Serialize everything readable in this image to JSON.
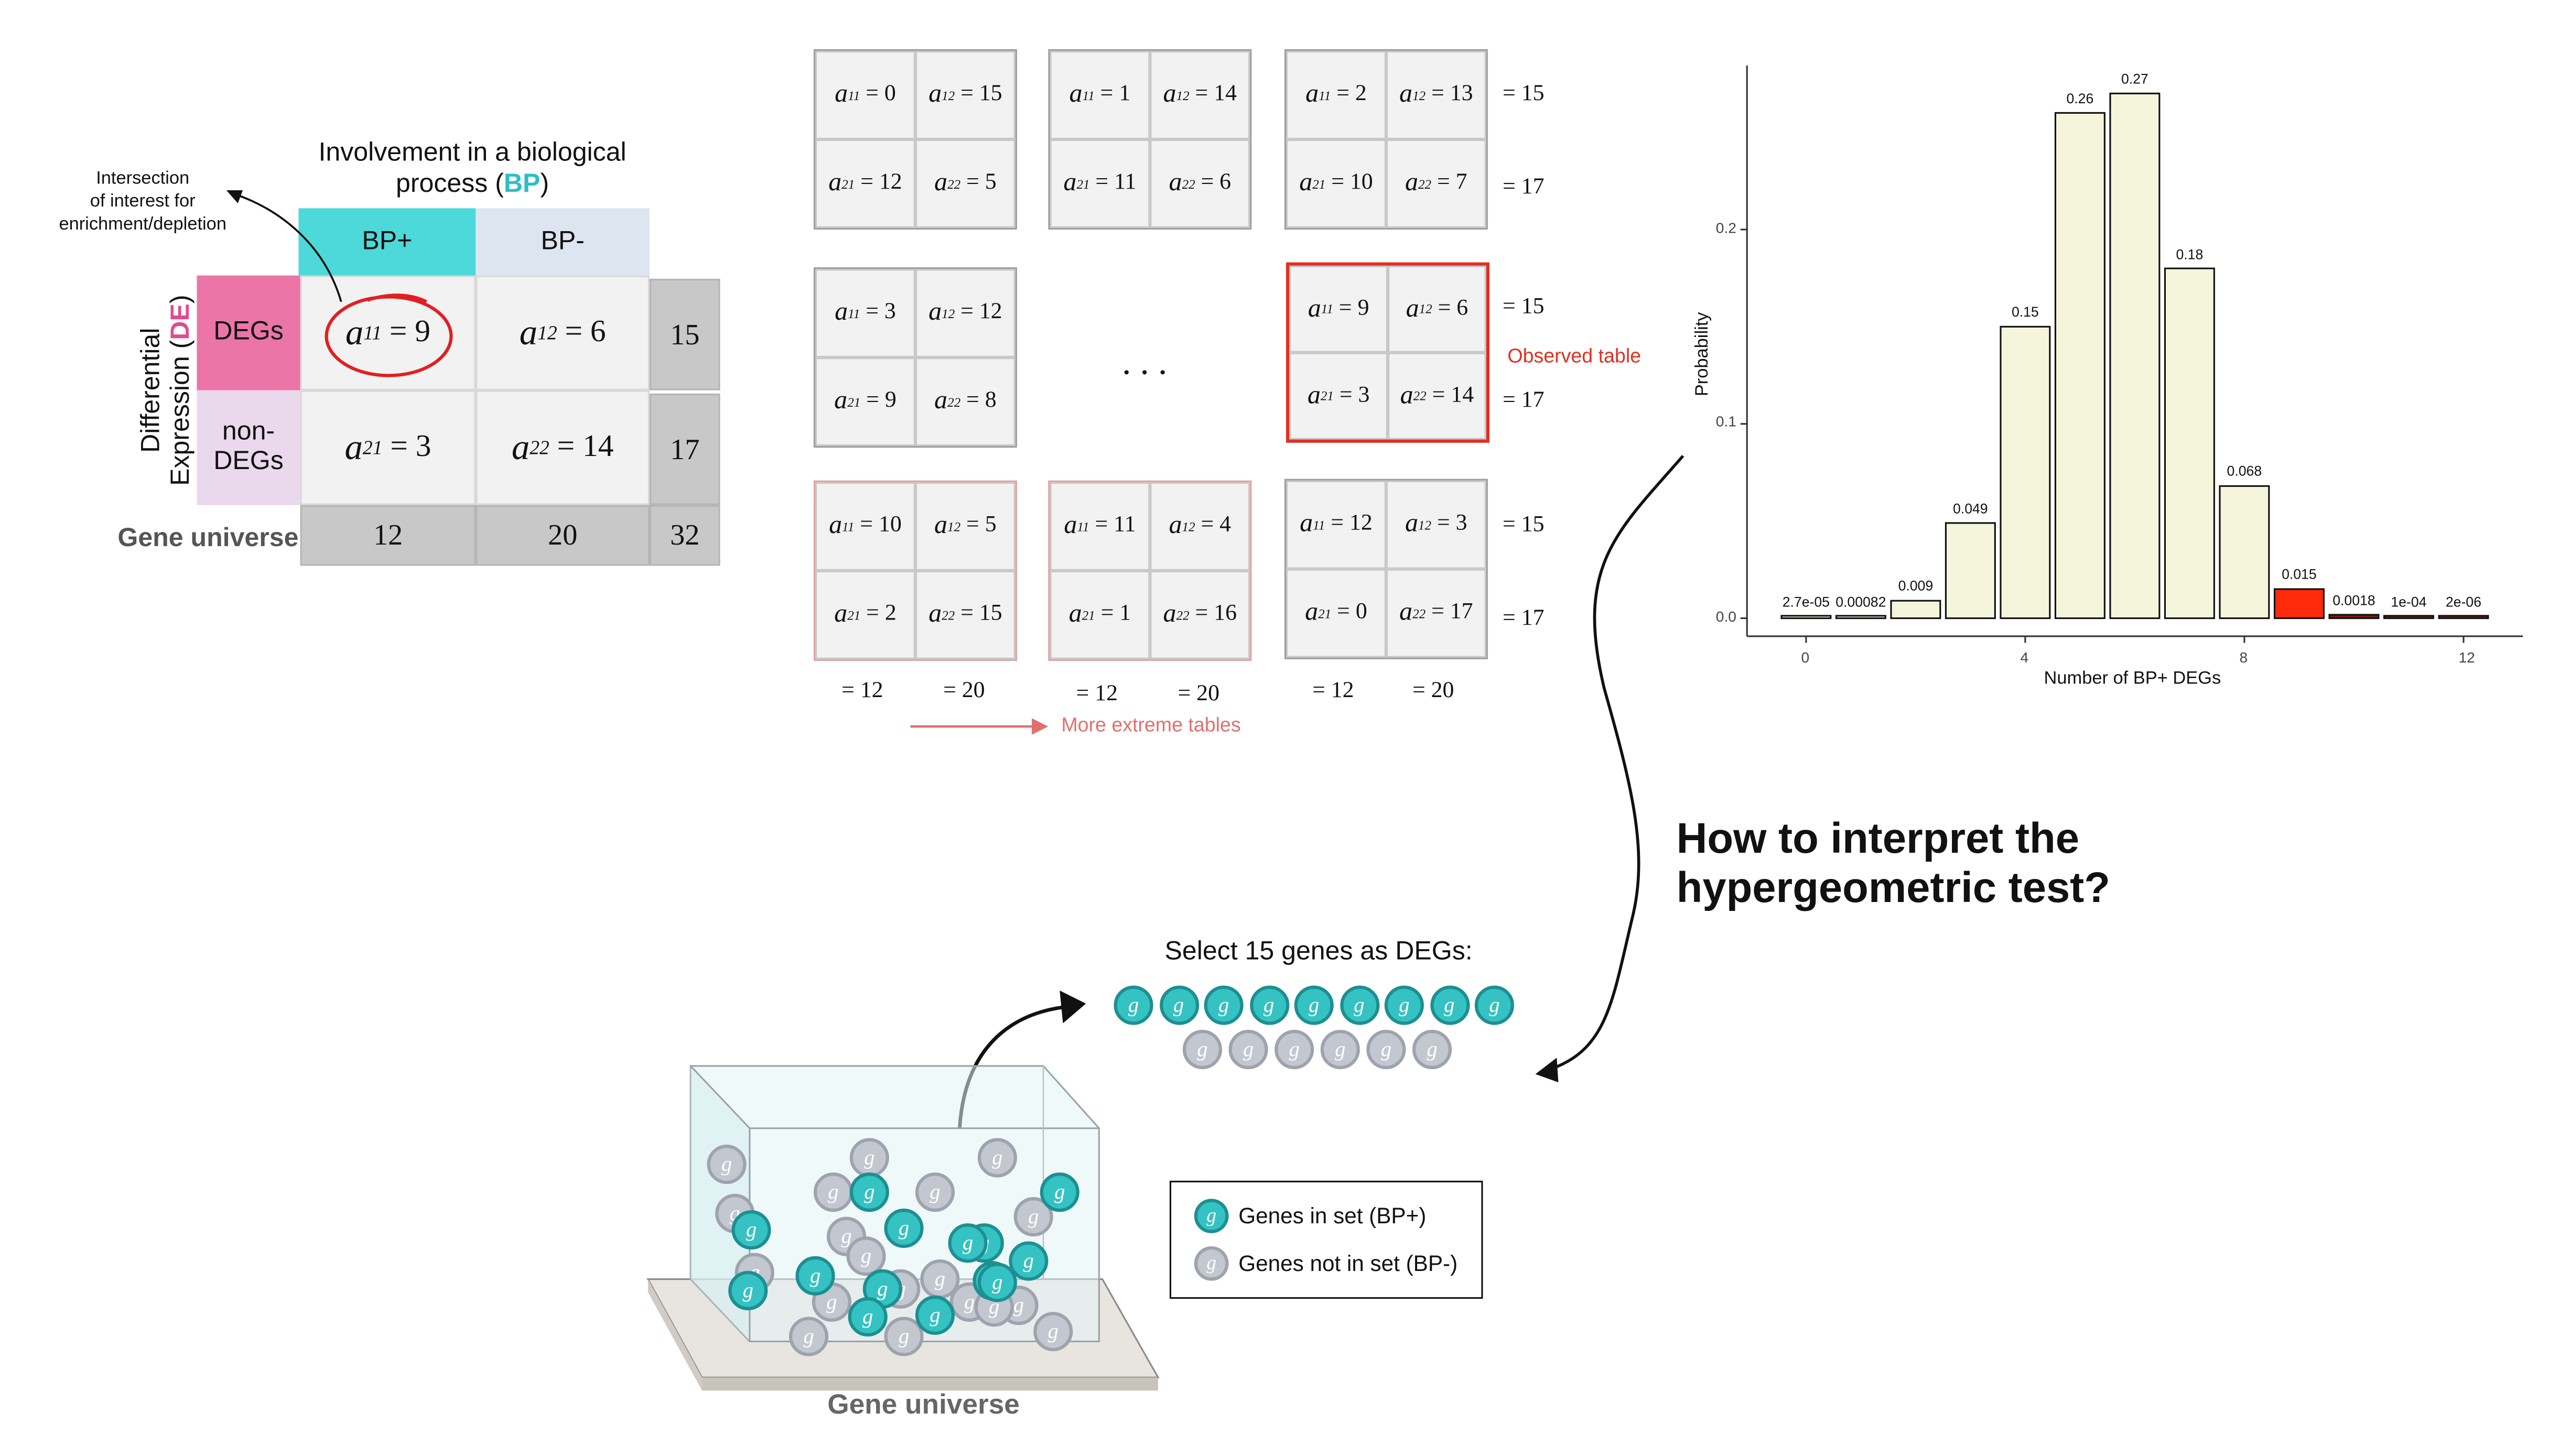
{
  "contingency": {
    "title_line1": "Involvement in a biological",
    "title_line2": "process (",
    "title_bp": "BP",
    "title_close": ")",
    "bp_plus": "BP+",
    "bp_minus": "BP-",
    "row_axis_line1": "Differential",
    "row_axis_line2": "Expression (",
    "row_axis_de": "DE",
    "row_axis_close": ")",
    "degs": "DEGs",
    "non_degs_1": "non-",
    "non_degs_2": "DEGs",
    "gene_universe": "Gene universe",
    "cells": {
      "a11_var": "a",
      "a11_sub": "11",
      "a11_val": "= 9",
      "a12_var": "a",
      "a12_sub": "12",
      "a12_val": "= 6",
      "a21_var": "a",
      "a21_sub": "21",
      "a21_val": "= 3",
      "a22_var": "a",
      "a22_sub": "22",
      "a22_val": "= 14"
    },
    "row_totals": [
      "15",
      "17"
    ],
    "col_totals": [
      "12",
      "20"
    ],
    "grand_total": "32",
    "annotation": [
      "Intersection",
      "of interest for",
      "enrichment/depletion"
    ]
  },
  "mini_tables": [
    {
      "a11": "= 0",
      "a12": "= 15",
      "a21": "= 12",
      "a22": "= 5"
    },
    {
      "a11": "= 1",
      "a12": "= 14",
      "a21": "= 11",
      "a22": "= 6"
    },
    {
      "a11": "= 2",
      "a12": "= 13",
      "a21": "= 10",
      "a22": "= 7"
    },
    {
      "a11": "= 3",
      "a12": "= 12",
      "a21": "= 9",
      "a22": "= 8"
    },
    {
      "a11": "= 9",
      "a12": "= 6",
      "a21": "= 3",
      "a22": "= 14"
    },
    {
      "a11": "= 10",
      "a12": "= 5",
      "a21": "= 2",
      "a22": "= 15"
    },
    {
      "a11": "= 11",
      "a12": "= 4",
      "a21": "= 1",
      "a22": "= 16"
    },
    {
      "a11": "= 12",
      "a12": "= 3",
      "a21": "= 0",
      "a22": "= 17"
    }
  ],
  "mini_labels": {
    "sub11": "11",
    "sub12": "12",
    "sub21": "21",
    "sub22": "22",
    "var": "a",
    "row_sum_1": "= 15",
    "row_sum_2": "= 17",
    "col_sum_1": "= 12",
    "col_sum_2": "= 20",
    "ellipsis": ". . .",
    "observed": "Observed table",
    "more_extreme": "More extreme tables"
  },
  "chart_data": {
    "type": "bar",
    "xlabel": "Number of BP+ DEGs",
    "ylabel": "Probability",
    "x": [
      0,
      1,
      2,
      3,
      4,
      5,
      6,
      7,
      8,
      9,
      10,
      11,
      12
    ],
    "values": [
      2.7e-05,
      0.00082,
      0.009,
      0.049,
      0.15,
      0.26,
      0.27,
      0.18,
      0.068,
      0.015,
      0.0018,
      0.0001,
      2e-06
    ],
    "value_labels": [
      "2.7e-05",
      "0.00082",
      "0.009",
      "0.049",
      "0.15",
      "0.26",
      "0.27",
      "0.18",
      "0.068",
      "0.015",
      "0.0018",
      "1e-04",
      "2e-06"
    ],
    "xticks": [
      "0",
      "4",
      "8",
      "12"
    ],
    "yticks": [
      "0.0",
      "0.1",
      "0.2"
    ],
    "ylim": [
      0,
      0.27
    ],
    "highlight_from": 9,
    "colors": {
      "normal": "#f5f5dc",
      "highlight_main": "#ff2a0a",
      "highlight_dark": "#7a1a0a"
    },
    "grid": false
  },
  "question": [
    "How to interpret the",
    "hypergeometric test?"
  ],
  "select_label": "Select 15 genes as DEGs:",
  "gene_glyph": "g",
  "legend": {
    "in_set": "Genes in set (BP+)",
    "not_in_set": "Genes not in set (BP-)"
  },
  "box_label": "Gene universe",
  "colors": {
    "teal": "#4dd9d9",
    "pink": "#ec75a8",
    "de_pink": "#e04b90",
    "bp_teal": "#2bbfc6",
    "red": "#e03020"
  }
}
